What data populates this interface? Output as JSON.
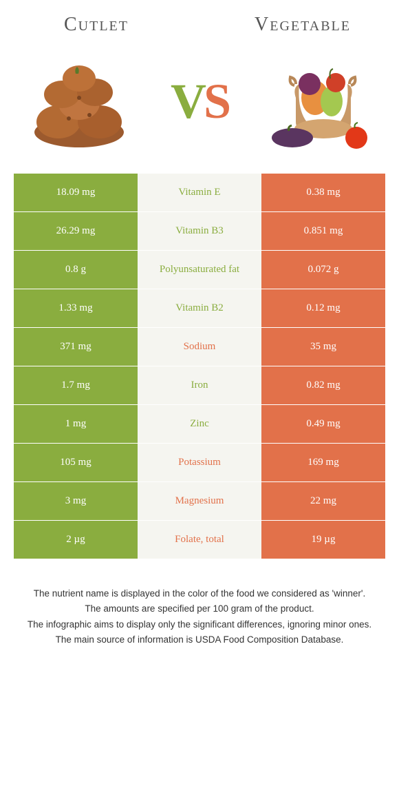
{
  "header": {
    "left_title": "Cutlet",
    "right_title": "Vegetable"
  },
  "vs": {
    "v": "V",
    "s": "S"
  },
  "colors": {
    "green": "#8aad3f",
    "orange": "#e2714a",
    "mid_bg": "#f5f5f0"
  },
  "rows": [
    {
      "left": "18.09 mg",
      "label": "Vitamin E",
      "winner": "green",
      "right": "0.38 mg"
    },
    {
      "left": "26.29 mg",
      "label": "Vitamin B3",
      "winner": "green",
      "right": "0.851 mg"
    },
    {
      "left": "0.8 g",
      "label": "Polyunsaturated fat",
      "winner": "green",
      "right": "0.072 g"
    },
    {
      "left": "1.33 mg",
      "label": "Vitamin B2",
      "winner": "green",
      "right": "0.12 mg"
    },
    {
      "left": "371 mg",
      "label": "Sodium",
      "winner": "orange",
      "right": "35 mg"
    },
    {
      "left": "1.7 mg",
      "label": "Iron",
      "winner": "green",
      "right": "0.82 mg"
    },
    {
      "left": "1 mg",
      "label": "Zinc",
      "winner": "green",
      "right": "0.49 mg"
    },
    {
      "left": "105 mg",
      "label": "Potassium",
      "winner": "orange",
      "right": "169 mg"
    },
    {
      "left": "3 mg",
      "label": "Magnesium",
      "winner": "orange",
      "right": "22 mg"
    },
    {
      "left": "2 µg",
      "label": "Folate, total",
      "winner": "orange",
      "right": "19 µg"
    }
  ],
  "footer": {
    "line1": "The nutrient name is displayed in the color of the food we considered as 'winner'.",
    "line2": "The amounts are specified per 100 gram of the product.",
    "line3": "The infographic aims to display only the significant differences, ignoring minor ones.",
    "line4": "The main source of information is USDA Food Composition Database."
  }
}
